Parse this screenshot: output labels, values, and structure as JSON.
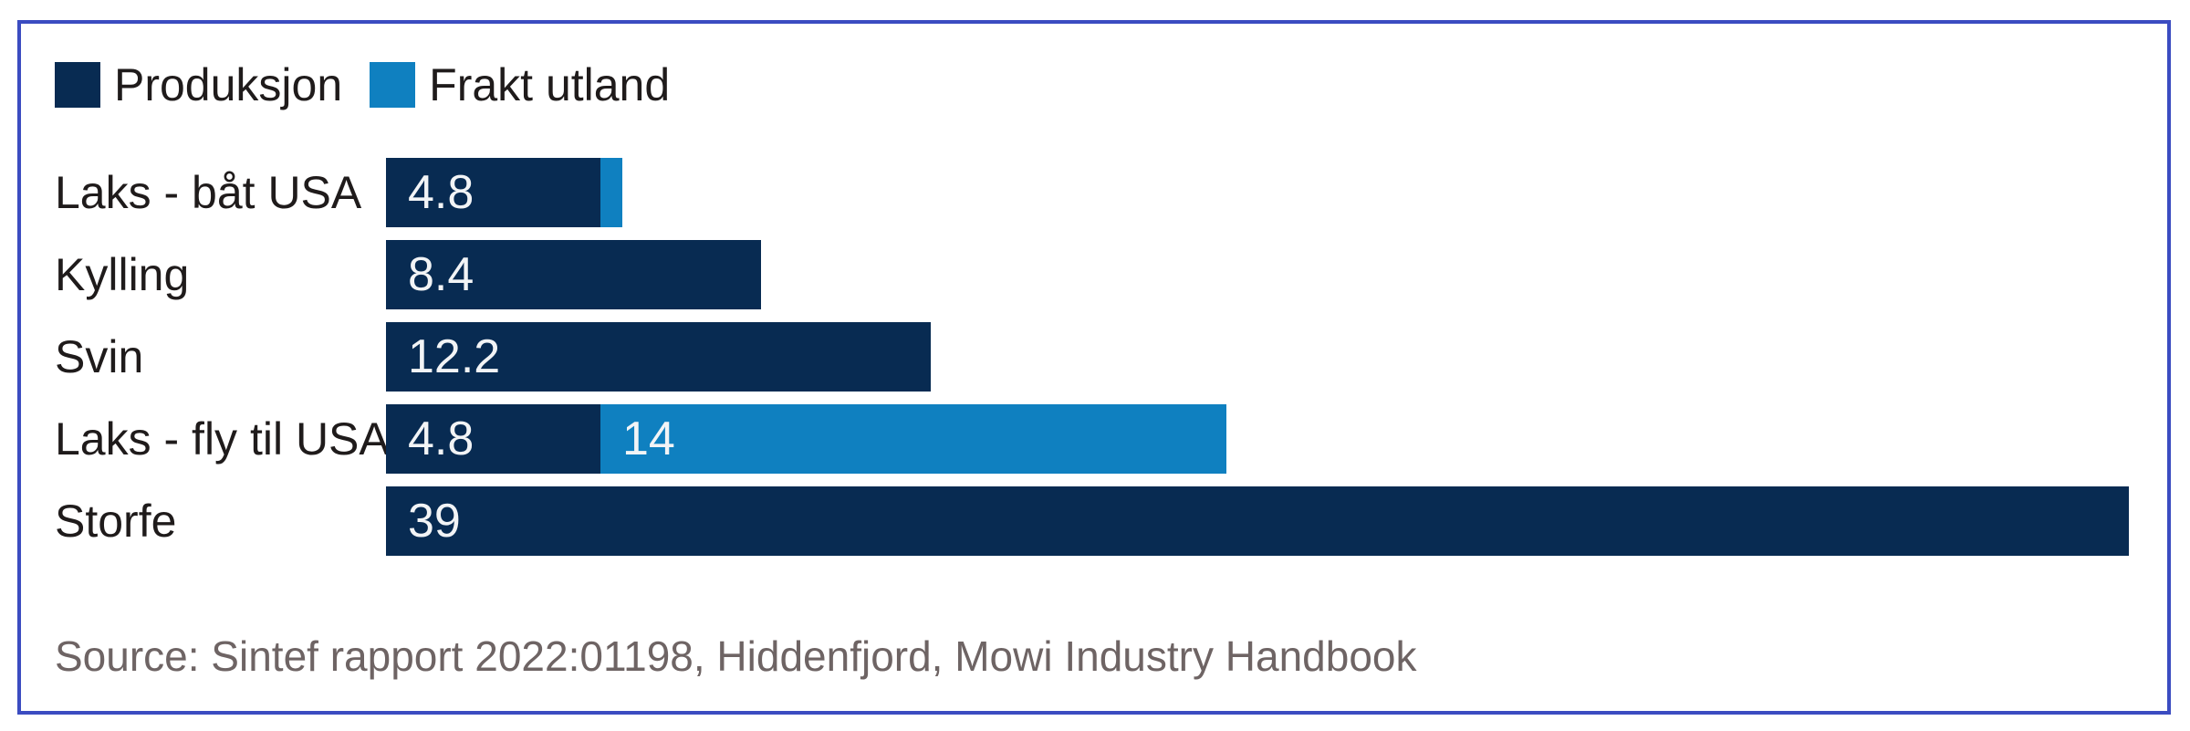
{
  "frame": {
    "border_color": "#3b4cc1",
    "background": "#ffffff"
  },
  "colors": {
    "production": "#082b52",
    "freight": "#0f80c0",
    "text": "#1f1b1b",
    "value_text": "#f2f4f6",
    "source_text": "#6e6464"
  },
  "legend": {
    "items": [
      {
        "label": "Produksjon",
        "color": "#082b52"
      },
      {
        "label": "Frakt utland",
        "color": "#0f80c0"
      }
    ]
  },
  "chart_data": {
    "type": "bar",
    "orientation": "horizontal",
    "stacked": true,
    "grid": false,
    "axis_visible": false,
    "legend_position": "top-left",
    "categories": [
      "Laks - båt USA",
      "Kylling",
      "Svin",
      "Laks - fly til USA",
      "Storfe"
    ],
    "series": [
      {
        "name": "Produksjon",
        "color": "#082b52",
        "values": [
          4.8,
          8.4,
          12.2,
          4.8,
          39
        ]
      },
      {
        "name": "Frakt utland",
        "color": "#0f80c0",
        "values": [
          0.5,
          0,
          0,
          14,
          0
        ]
      }
    ],
    "bar_labels": [
      [
        "4.8",
        ""
      ],
      [
        "8.4",
        ""
      ],
      [
        "12.2",
        ""
      ],
      [
        "4.8",
        "14"
      ],
      [
        "39",
        ""
      ]
    ],
    "xlim": [
      0,
      39.5
    ]
  },
  "source": {
    "text": "Source: Sintef rapport 2022:01198, Hiddenfjord, Mowi Industry Handbook"
  }
}
